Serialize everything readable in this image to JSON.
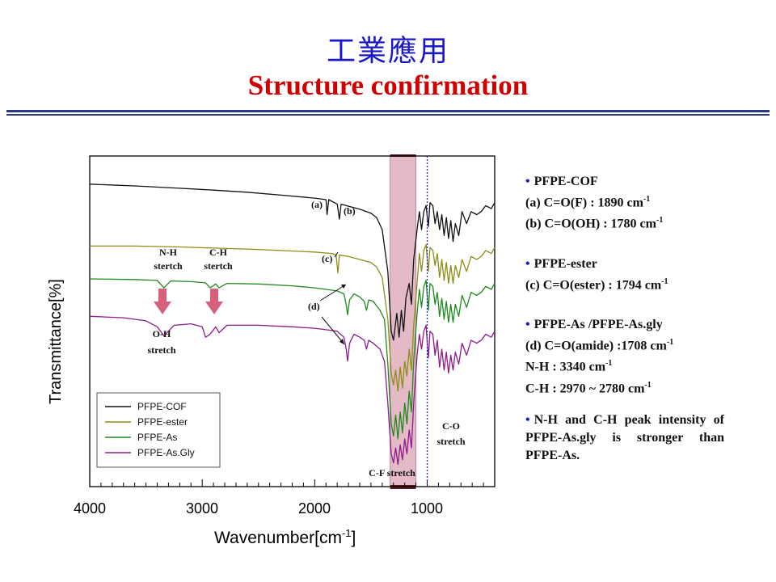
{
  "slide": {
    "title_cn": "工業應用",
    "title_en": "Structure  confirmation"
  },
  "chart_data": {
    "type": "line",
    "xlabel": "Wavenumber[cm",
    "xlabel_sup": "-1",
    "xlabel_close": "]",
    "ylabel": "Transmittance[%]",
    "x_reversed": true,
    "xlim": [
      4000,
      400
    ],
    "x_ticks": [
      {
        "label": "4000"
      },
      {
        "label": "3000"
      },
      {
        "label": "2000"
      },
      {
        "label": "1000"
      }
    ],
    "ylim": [
      0,
      1
    ],
    "grid": false,
    "legend_position": "bottom-left",
    "highlight_band": {
      "from": 1330,
      "to": 1100,
      "color": "#d9a3b3"
    },
    "reference_line": {
      "x": 1000,
      "color": "#2a2ad0",
      "style": "dotted"
    },
    "series": [
      {
        "name": "PFPE-COF",
        "color": "#111111",
        "points": [
          [
            4000,
            0.952
          ],
          [
            3600,
            0.946
          ],
          [
            3200,
            0.938
          ],
          [
            2900,
            0.932
          ],
          [
            2600,
            0.925
          ],
          [
            2300,
            0.915
          ],
          [
            2000,
            0.905
          ],
          [
            1900,
            0.9
          ],
          [
            1890,
            0.85
          ],
          [
            1875,
            0.9
          ],
          [
            1800,
            0.885
          ],
          [
            1780,
            0.835
          ],
          [
            1765,
            0.885
          ],
          [
            1700,
            0.878
          ],
          [
            1600,
            0.868
          ],
          [
            1500,
            0.855
          ],
          [
            1450,
            0.84
          ],
          [
            1400,
            0.8
          ],
          [
            1350,
            0.66
          ],
          [
            1320,
            0.46
          ],
          [
            1300,
            0.43
          ],
          [
            1270,
            0.52
          ],
          [
            1250,
            0.44
          ],
          [
            1230,
            0.53
          ],
          [
            1210,
            0.46
          ],
          [
            1190,
            0.57
          ],
          [
            1160,
            0.62
          ],
          [
            1140,
            0.55
          ],
          [
            1120,
            0.7
          ],
          [
            1090,
            0.8
          ],
          [
            1070,
            0.86
          ],
          [
            1050,
            0.8
          ],
          [
            1030,
            0.86
          ],
          [
            1010,
            0.88
          ],
          [
            990,
            0.81
          ],
          [
            975,
            0.89
          ],
          [
            950,
            0.88
          ],
          [
            930,
            0.82
          ],
          [
            910,
            0.86
          ],
          [
            890,
            0.8
          ],
          [
            870,
            0.85
          ],
          [
            850,
            0.78
          ],
          [
            830,
            0.84
          ],
          [
            810,
            0.77
          ],
          [
            790,
            0.83
          ],
          [
            770,
            0.76
          ],
          [
            750,
            0.82
          ],
          [
            720,
            0.78
          ],
          [
            690,
            0.86
          ],
          [
            650,
            0.82
          ],
          [
            610,
            0.86
          ],
          [
            560,
            0.85
          ],
          [
            520,
            0.86
          ],
          [
            480,
            0.88
          ],
          [
            430,
            0.87
          ],
          [
            400,
            0.89
          ]
        ]
      },
      {
        "name": "PFPE-ester",
        "color": "#8d8d18",
        "points": [
          [
            4000,
            0.745
          ],
          [
            3600,
            0.745
          ],
          [
            3200,
            0.742
          ],
          [
            2900,
            0.738
          ],
          [
            2600,
            0.735
          ],
          [
            2300,
            0.73
          ],
          [
            2000,
            0.725
          ],
          [
            1850,
            0.72
          ],
          [
            1810,
            0.715
          ],
          [
            1794,
            0.655
          ],
          [
            1780,
            0.715
          ],
          [
            1700,
            0.71
          ],
          [
            1600,
            0.7
          ],
          [
            1500,
            0.69
          ],
          [
            1450,
            0.675
          ],
          [
            1400,
            0.64
          ],
          [
            1350,
            0.5
          ],
          [
            1320,
            0.32
          ],
          [
            1300,
            0.28
          ],
          [
            1280,
            0.33
          ],
          [
            1260,
            0.26
          ],
          [
            1240,
            0.34
          ],
          [
            1220,
            0.27
          ],
          [
            1200,
            0.36
          ],
          [
            1180,
            0.31
          ],
          [
            1160,
            0.4
          ],
          [
            1140,
            0.33
          ],
          [
            1120,
            0.48
          ],
          [
            1090,
            0.62
          ],
          [
            1070,
            0.72
          ],
          [
            1050,
            0.66
          ],
          [
            1030,
            0.73
          ],
          [
            1010,
            0.75
          ],
          [
            990,
            0.66
          ],
          [
            975,
            0.74
          ],
          [
            950,
            0.73
          ],
          [
            930,
            0.68
          ],
          [
            910,
            0.72
          ],
          [
            890,
            0.64
          ],
          [
            870,
            0.7
          ],
          [
            850,
            0.63
          ],
          [
            830,
            0.69
          ],
          [
            810,
            0.62
          ],
          [
            790,
            0.68
          ],
          [
            770,
            0.62
          ],
          [
            750,
            0.68
          ],
          [
            720,
            0.64
          ],
          [
            690,
            0.7
          ],
          [
            650,
            0.66
          ],
          [
            610,
            0.71
          ],
          [
            560,
            0.7
          ],
          [
            520,
            0.71
          ],
          [
            480,
            0.73
          ],
          [
            430,
            0.72
          ],
          [
            400,
            0.74
          ]
        ]
      },
      {
        "name": "PFPE-As",
        "color": "#1e8a1e",
        "points": [
          [
            4000,
            0.635
          ],
          [
            3600,
            0.633
          ],
          [
            3400,
            0.63
          ],
          [
            3340,
            0.605
          ],
          [
            3280,
            0.628
          ],
          [
            3100,
            0.626
          ],
          [
            2970,
            0.622
          ],
          [
            2930,
            0.605
          ],
          [
            2880,
            0.618
          ],
          [
            2850,
            0.605
          ],
          [
            2780,
            0.62
          ],
          [
            2500,
            0.618
          ],
          [
            2200,
            0.612
          ],
          [
            2000,
            0.605
          ],
          [
            1900,
            0.6
          ],
          [
            1800,
            0.595
          ],
          [
            1740,
            0.585
          ],
          [
            1720,
            0.55
          ],
          [
            1708,
            0.515
          ],
          [
            1690,
            0.565
          ],
          [
            1650,
            0.585
          ],
          [
            1600,
            0.575
          ],
          [
            1560,
            0.56
          ],
          [
            1540,
            0.53
          ],
          [
            1520,
            0.565
          ],
          [
            1480,
            0.56
          ],
          [
            1420,
            0.53
          ],
          [
            1380,
            0.5
          ],
          [
            1350,
            0.35
          ],
          [
            1320,
            0.15
          ],
          [
            1300,
            0.11
          ],
          [
            1280,
            0.18
          ],
          [
            1260,
            0.1
          ],
          [
            1240,
            0.19
          ],
          [
            1220,
            0.12
          ],
          [
            1200,
            0.22
          ],
          [
            1180,
            0.15
          ],
          [
            1160,
            0.26
          ],
          [
            1140,
            0.19
          ],
          [
            1120,
            0.36
          ],
          [
            1090,
            0.52
          ],
          [
            1070,
            0.6
          ],
          [
            1050,
            0.54
          ],
          [
            1030,
            0.61
          ],
          [
            1010,
            0.63
          ],
          [
            990,
            0.53
          ],
          [
            975,
            0.62
          ],
          [
            950,
            0.61
          ],
          [
            930,
            0.55
          ],
          [
            910,
            0.59
          ],
          [
            890,
            0.51
          ],
          [
            870,
            0.57
          ],
          [
            850,
            0.5
          ],
          [
            830,
            0.56
          ],
          [
            810,
            0.49
          ],
          [
            790,
            0.55
          ],
          [
            770,
            0.49
          ],
          [
            750,
            0.55
          ],
          [
            720,
            0.51
          ],
          [
            690,
            0.58
          ],
          [
            650,
            0.54
          ],
          [
            610,
            0.59
          ],
          [
            560,
            0.58
          ],
          [
            520,
            0.59
          ],
          [
            480,
            0.61
          ],
          [
            430,
            0.6
          ],
          [
            400,
            0.62
          ]
        ]
      },
      {
        "name": "PFPE-As.Gly",
        "color": "#8e1a8e",
        "points": [
          [
            4000,
            0.51
          ],
          [
            3700,
            0.505
          ],
          [
            3500,
            0.495
          ],
          [
            3400,
            0.475
          ],
          [
            3340,
            0.445
          ],
          [
            3250,
            0.48
          ],
          [
            3100,
            0.485
          ],
          [
            3000,
            0.475
          ],
          [
            2970,
            0.44
          ],
          [
            2930,
            0.45
          ],
          [
            2880,
            0.475
          ],
          [
            2850,
            0.455
          ],
          [
            2780,
            0.48
          ],
          [
            2500,
            0.48
          ],
          [
            2200,
            0.475
          ],
          [
            2000,
            0.47
          ],
          [
            1900,
            0.465
          ],
          [
            1800,
            0.46
          ],
          [
            1740,
            0.44
          ],
          [
            1720,
            0.4
          ],
          [
            1708,
            0.36
          ],
          [
            1690,
            0.42
          ],
          [
            1650,
            0.45
          ],
          [
            1600,
            0.44
          ],
          [
            1560,
            0.43
          ],
          [
            1540,
            0.4
          ],
          [
            1520,
            0.43
          ],
          [
            1480,
            0.42
          ],
          [
            1420,
            0.4
          ],
          [
            1380,
            0.36
          ],
          [
            1350,
            0.22
          ],
          [
            1320,
            0.05
          ],
          [
            1300,
            0.02
          ],
          [
            1280,
            0.07
          ],
          [
            1260,
            0.015
          ],
          [
            1240,
            0.08
          ],
          [
            1220,
            0.03
          ],
          [
            1200,
            0.1
          ],
          [
            1180,
            0.05
          ],
          [
            1160,
            0.13
          ],
          [
            1140,
            0.07
          ],
          [
            1120,
            0.22
          ],
          [
            1090,
            0.38
          ],
          [
            1070,
            0.45
          ],
          [
            1050,
            0.4
          ],
          [
            1030,
            0.46
          ],
          [
            1010,
            0.48
          ],
          [
            990,
            0.37
          ],
          [
            975,
            0.46
          ],
          [
            950,
            0.45
          ],
          [
            930,
            0.38
          ],
          [
            910,
            0.43
          ],
          [
            890,
            0.34
          ],
          [
            870,
            0.4
          ],
          [
            850,
            0.33
          ],
          [
            830,
            0.39
          ],
          [
            810,
            0.32
          ],
          [
            790,
            0.38
          ],
          [
            770,
            0.33
          ],
          [
            750,
            0.39
          ],
          [
            720,
            0.35
          ],
          [
            690,
            0.42
          ],
          [
            650,
            0.38
          ],
          [
            610,
            0.43
          ],
          [
            560,
            0.42
          ],
          [
            520,
            0.43
          ],
          [
            480,
            0.45
          ],
          [
            430,
            0.44
          ],
          [
            400,
            0.46
          ]
        ]
      }
    ],
    "annotations": {
      "a": "(a)",
      "b": "(b)",
      "c": "(c)",
      "d": "(d)",
      "nh": [
        "N-H",
        "stertch"
      ],
      "ch": [
        "C-H",
        "stertch"
      ],
      "oh": [
        "O-H",
        "stretch"
      ],
      "co": [
        "C-O",
        "stretch"
      ],
      "cf": "C-F stretch"
    }
  },
  "notes": {
    "cof": {
      "title": "PFPE-COF",
      "line_a": "(a) C=O(F) : 1890 cm",
      "line_b": "(b) C=O(OH) : 1780 cm",
      "sup": "-1"
    },
    "ester": {
      "title": "PFPE-ester",
      "line_c": "(c) C=O(ester)  : 1794 cm",
      "sup": "-1"
    },
    "as": {
      "title": "PFPE-As /PFPE-As.gly",
      "line_d": "(d) C=O(amide) :1708 cm",
      "line_nh": "N-H : 3340 cm",
      "line_ch": "C-H : 2970 ~ 2780 cm",
      "sup": "-1"
    },
    "comparison": "N-H and C-H peak intensity of PFPE-As.gly is stronger than  PFPE-As."
  },
  "colors": {
    "arrow": "#d9607a",
    "title_cn": "#1a17c8",
    "title_en": "#d10000",
    "bullet": "#1a17c8"
  }
}
